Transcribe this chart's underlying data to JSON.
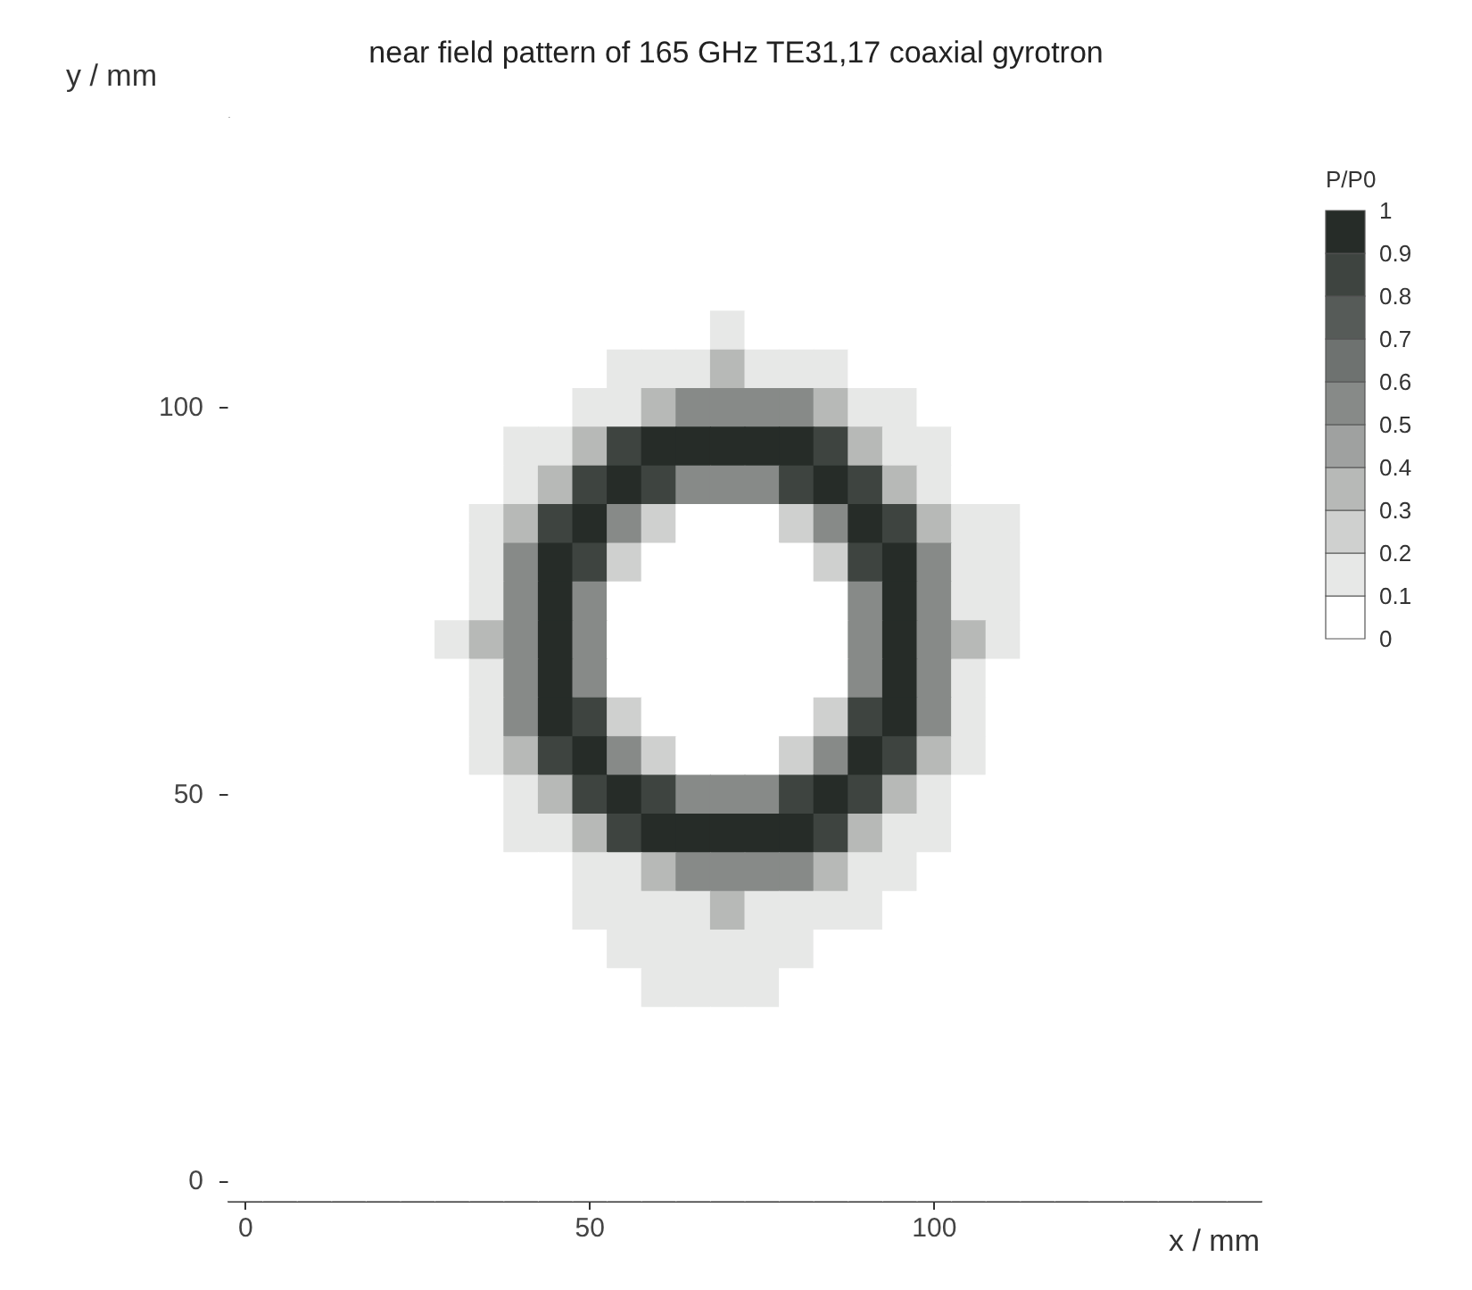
{
  "chart_data": {
    "type": "heatmap",
    "title": "near field pattern of 165 GHz TE31,17 coaxial gyrotron",
    "xlabel": "x / mm",
    "ylabel": "y / mm",
    "clabel": "P/P0",
    "categories": [
      "0",
      null,
      null,
      null,
      null,
      null,
      null,
      null,
      null,
      null,
      "50",
      null,
      null,
      null,
      null,
      null,
      null,
      null,
      null,
      null,
      "100",
      null,
      null,
      null,
      null,
      null,
      null,
      null,
      null,
      null
    ],
    "y_categories": [
      null,
      null,
      null,
      null,
      null,
      null,
      null,
      "100",
      null,
      null,
      null,
      null,
      null,
      null,
      null,
      null,
      null,
      "50",
      null,
      null,
      null,
      null,
      null,
      null,
      null,
      null,
      null,
      "0"
    ],
    "cells": [
      [
        0,
        0,
        0,
        0,
        0,
        0,
        0,
        0,
        0,
        0,
        0,
        0,
        0,
        0,
        0,
        0,
        0,
        0,
        0,
        0,
        0,
        0,
        0,
        0,
        0,
        0,
        0,
        0,
        0,
        0
      ],
      [
        0,
        0,
        0,
        0,
        0,
        0,
        0,
        0,
        0,
        0,
        0,
        0,
        0,
        0,
        0,
        0,
        0,
        0,
        0,
        0,
        0,
        0,
        0,
        0,
        0,
        0,
        0,
        0,
        0,
        0
      ],
      [
        0,
        0,
        0,
        0,
        0,
        0,
        0,
        0,
        0,
        0,
        0,
        0,
        0,
        0,
        0,
        0,
        0,
        0,
        0,
        0,
        0,
        0,
        0,
        0,
        0,
        0,
        0,
        0,
        0,
        0
      ],
      [
        0,
        0,
        0,
        0,
        0,
        0,
        0,
        0,
        0,
        0,
        0,
        0,
        0,
        0,
        0,
        0,
        0,
        0,
        0,
        0,
        0,
        0,
        0,
        0,
        0,
        0,
        0,
        0,
        0,
        0
      ],
      [
        0,
        0,
        0,
        0,
        0,
        0,
        0,
        0,
        0,
        0,
        0,
        0,
        0,
        0,
        0,
        0,
        0,
        0,
        0,
        0,
        0,
        0,
        0,
        0,
        0,
        0,
        0,
        0,
        0,
        0
      ],
      [
        0,
        0,
        0,
        0,
        0,
        0,
        0,
        0,
        0,
        0,
        0,
        0,
        0,
        0,
        0.1,
        0,
        0,
        0,
        0,
        0,
        0,
        0,
        0,
        0,
        0,
        0,
        0,
        0,
        0,
        0
      ],
      [
        0,
        0,
        0,
        0,
        0,
        0,
        0,
        0,
        0,
        0,
        0,
        0.1,
        0.1,
        0.1,
        0.3,
        0.1,
        0.1,
        0.1,
        0,
        0,
        0,
        0,
        0,
        0,
        0,
        0,
        0,
        0,
        0,
        0
      ],
      [
        0,
        0,
        0,
        0,
        0,
        0,
        0,
        0,
        0,
        0,
        0.1,
        0.1,
        0.3,
        0.5,
        0.5,
        0.5,
        0.5,
        0.3,
        0.1,
        0.1,
        0,
        0,
        0,
        0,
        0,
        0,
        0,
        0,
        0,
        0
      ],
      [
        0,
        0,
        0,
        0,
        0,
        0,
        0,
        0,
        0.1,
        0.1,
        0.3,
        0.8,
        1,
        1,
        1,
        1,
        1,
        0.8,
        0.3,
        0.1,
        0.1,
        0,
        0,
        0,
        0,
        0,
        0,
        0,
        0,
        0
      ],
      [
        0,
        0,
        0,
        0,
        0,
        0,
        0,
        0,
        0.1,
        0.3,
        0.8,
        1,
        0.8,
        0.5,
        0.5,
        0.5,
        0.8,
        1,
        0.8,
        0.3,
        0.1,
        0,
        0,
        0,
        0,
        0,
        0,
        0,
        0,
        0
      ],
      [
        0,
        0,
        0,
        0,
        0,
        0,
        0,
        0.1,
        0.3,
        0.8,
        1,
        0.5,
        0.2,
        0,
        0,
        0,
        0.2,
        0.5,
        1,
        0.8,
        0.3,
        0.1,
        0.1,
        0,
        0,
        0,
        0,
        0,
        0,
        0
      ],
      [
        0,
        0,
        0,
        0,
        0,
        0,
        0,
        0.1,
        0.5,
        1,
        0.8,
        0.2,
        0,
        0,
        0,
        0,
        0,
        0.2,
        0.8,
        1,
        0.5,
        0.1,
        0.1,
        0,
        0,
        0,
        0,
        0,
        0,
        0
      ],
      [
        0,
        0,
        0,
        0,
        0,
        0,
        0,
        0.1,
        0.5,
        1,
        0.5,
        0,
        0,
        0,
        0,
        0,
        0,
        0,
        0.5,
        1,
        0.5,
        0.1,
        0.1,
        0,
        0,
        0,
        0,
        0,
        0,
        0
      ],
      [
        0,
        0,
        0,
        0,
        0,
        0,
        0.1,
        0.3,
        0.5,
        1,
        0.5,
        0,
        0,
        0,
        0,
        0,
        0,
        0,
        0.5,
        1,
        0.5,
        0.3,
        0.1,
        0,
        0,
        0,
        0,
        0,
        0,
        0
      ],
      [
        0,
        0,
        0,
        0,
        0,
        0,
        0,
        0.1,
        0.5,
        1,
        0.5,
        0,
        0,
        0,
        0,
        0,
        0,
        0,
        0.5,
        1,
        0.5,
        0.1,
        0,
        0,
        0,
        0,
        0,
        0,
        0,
        0
      ],
      [
        0,
        0,
        0,
        0,
        0,
        0,
        0,
        0.1,
        0.5,
        1,
        0.8,
        0.2,
        0,
        0,
        0,
        0,
        0,
        0.2,
        0.8,
        1,
        0.5,
        0.1,
        0,
        0,
        0,
        0,
        0,
        0,
        0,
        0
      ],
      [
        0,
        0,
        0,
        0,
        0,
        0,
        0,
        0.1,
        0.3,
        0.8,
        1,
        0.5,
        0.2,
        0,
        0,
        0,
        0.2,
        0.5,
        1,
        0.8,
        0.3,
        0.1,
        0,
        0,
        0,
        0,
        0,
        0,
        0,
        0
      ],
      [
        0,
        0,
        0,
        0,
        0,
        0,
        0,
        0,
        0.1,
        0.3,
        0.8,
        1,
        0.8,
        0.5,
        0.5,
        0.5,
        0.8,
        1,
        0.8,
        0.3,
        0.1,
        0,
        0,
        0,
        0,
        0,
        0,
        0,
        0,
        0
      ],
      [
        0,
        0,
        0,
        0,
        0,
        0,
        0,
        0,
        0.1,
        0.1,
        0.3,
        0.8,
        1,
        1,
        1,
        1,
        1,
        0.8,
        0.3,
        0.1,
        0.1,
        0,
        0,
        0,
        0,
        0,
        0,
        0,
        0,
        0
      ],
      [
        0,
        0,
        0,
        0,
        0,
        0,
        0,
        0,
        0,
        0,
        0.1,
        0.1,
        0.3,
        0.5,
        0.5,
        0.5,
        0.5,
        0.3,
        0.1,
        0.1,
        0,
        0,
        0,
        0,
        0,
        0,
        0,
        0,
        0,
        0
      ],
      [
        0,
        0,
        0,
        0,
        0,
        0,
        0,
        0,
        0,
        0,
        0.1,
        0.1,
        0.1,
        0.1,
        0.3,
        0.1,
        0.1,
        0.1,
        0.1,
        0,
        0,
        0,
        0,
        0,
        0,
        0,
        0,
        0,
        0,
        0
      ],
      [
        0,
        0,
        0,
        0,
        0,
        0,
        0,
        0,
        0,
        0,
        0,
        0.1,
        0.1,
        0.1,
        0.1,
        0.1,
        0.1,
        0,
        0,
        0,
        0,
        0,
        0,
        0,
        0,
        0,
        0,
        0,
        0,
        0
      ],
      [
        0,
        0,
        0,
        0,
        0,
        0,
        0,
        0,
        0,
        0,
        0,
        0,
        0.1,
        0.1,
        0.1,
        0.1,
        0,
        0,
        0,
        0,
        0,
        0,
        0,
        0,
        0,
        0,
        0,
        0,
        0,
        0
      ],
      [
        0,
        0,
        0,
        0,
        0,
        0,
        0,
        0,
        0,
        0,
        0,
        0,
        0,
        0,
        0,
        0,
        0,
        0,
        0,
        0,
        0,
        0,
        0,
        0,
        0,
        0,
        0,
        0,
        0,
        0
      ],
      [
        0,
        0,
        0,
        0,
        0,
        0,
        0,
        0,
        0,
        0,
        0,
        0,
        0,
        0,
        0,
        0,
        0,
        0,
        0,
        0,
        0,
        0,
        0,
        0,
        0,
        0,
        0,
        0,
        0,
        0
      ],
      [
        0,
        0,
        0,
        0,
        0,
        0,
        0,
        0,
        0,
        0,
        0,
        0,
        0,
        0,
        0,
        0,
        0,
        0,
        0,
        0,
        0,
        0,
        0,
        0,
        0,
        0,
        0,
        0,
        0,
        0
      ],
      [
        0,
        0,
        0,
        0,
        0,
        0,
        0,
        0,
        0,
        0,
        0,
        0,
        0,
        0,
        0,
        0,
        0,
        0,
        0,
        0,
        0,
        0,
        0,
        0,
        0,
        0,
        0,
        0,
        0,
        0
      ],
      [
        0,
        0,
        0,
        0,
        0,
        0,
        0,
        0,
        0,
        0,
        0,
        0,
        0,
        0,
        0,
        0,
        0,
        0,
        0,
        0,
        0,
        0,
        0,
        0,
        0,
        0,
        0,
        0,
        0,
        0
      ]
    ],
    "clim": [
      0,
      1
    ],
    "cticks": [
      0,
      0.1,
      0.2,
      0.3,
      0.4,
      0.5,
      0.6,
      0.7,
      0.8,
      0.9,
      1
    ],
    "grid": false
  }
}
